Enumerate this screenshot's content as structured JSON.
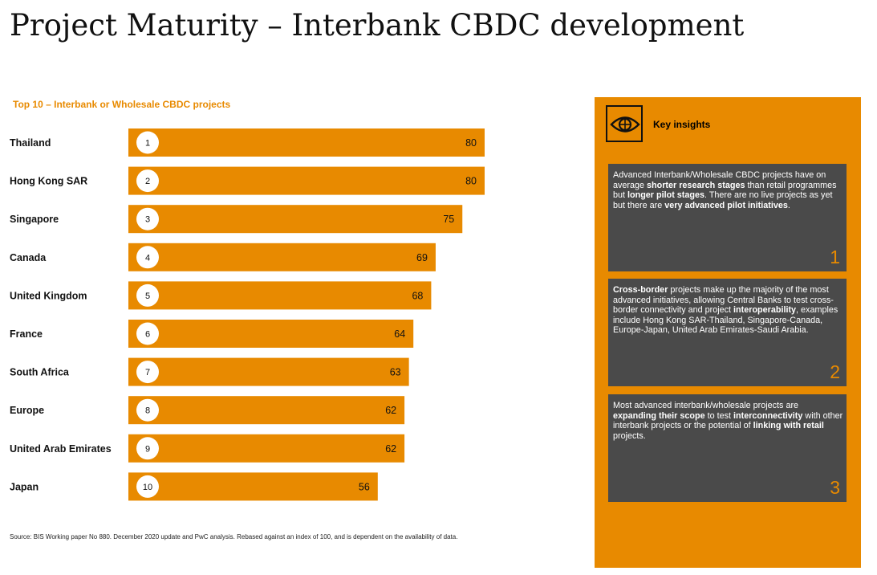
{
  "page": {
    "title": "Project Maturity – Interbank CBDC development"
  },
  "chart_data": {
    "type": "bar",
    "orientation": "horizontal",
    "title": "Top 10 – Interbank or Wholesale CBDC projects",
    "categories": [
      "Thailand",
      "Hong Kong SAR",
      "Singapore",
      "Canada",
      "United Kingdom",
      "France",
      "South Africa",
      "Europe",
      "United Arab Emirates",
      "Japan"
    ],
    "ranks": [
      "1",
      "2",
      "3",
      "4",
      "5",
      "6",
      "7",
      "8",
      "9",
      "10"
    ],
    "values": [
      80,
      80,
      75,
      69,
      68,
      64,
      63,
      62,
      62,
      56
    ],
    "xlim": [
      0,
      100
    ],
    "grid": false,
    "data_labels": true,
    "bar_color": "#e88a00"
  },
  "source": "Source: BIS Working paper No 880. December 2020 update and PwC analysis. Rebased against an index of 100, and is dependent on the availability of data.",
  "insights": {
    "icon": "eye-globe-icon",
    "title": "Key insights",
    "panel_color": "#e88a00",
    "card_color": "#4a4a4a",
    "cards": [
      {
        "number": "1",
        "segments": [
          {
            "t": "Advanced Interbank/Wholesale CBDC projects have on average ",
            "b": false
          },
          {
            "t": "shorter research stages",
            "b": true
          },
          {
            "t": " than retail programmes but ",
            "b": false
          },
          {
            "t": "longer pilot stages",
            "b": true
          },
          {
            "t": ". There are no live projects as yet but there are ",
            "b": false
          },
          {
            "t": "very advanced pilot initiatives",
            "b": true
          },
          {
            "t": ".",
            "b": false
          }
        ]
      },
      {
        "number": "2",
        "segments": [
          {
            "t": "Cross-border",
            "b": true
          },
          {
            "t": " projects make up the majority of the most advanced initiatives, allowing Central Banks to test cross-border connectivity and project ",
            "b": false
          },
          {
            "t": "interoperability",
            "b": true
          },
          {
            "t": ", examples include Hong Kong SAR-Thailand, Singapore-Canada, Europe-Japan, United Arab Emirates-Saudi Arabia.",
            "b": false
          }
        ]
      },
      {
        "number": "3",
        "segments": [
          {
            "t": "Most advanced interbank/wholesale projects are ",
            "b": false
          },
          {
            "t": "expanding their scope",
            "b": true
          },
          {
            "t": " to test ",
            "b": false
          },
          {
            "t": "interconnectivity",
            "b": true
          },
          {
            "t": " with other interbank projects or the potential of ",
            "b": false
          },
          {
            "t": "linking with retail",
            "b": true
          },
          {
            "t": " projects.",
            "b": false
          }
        ]
      }
    ]
  }
}
